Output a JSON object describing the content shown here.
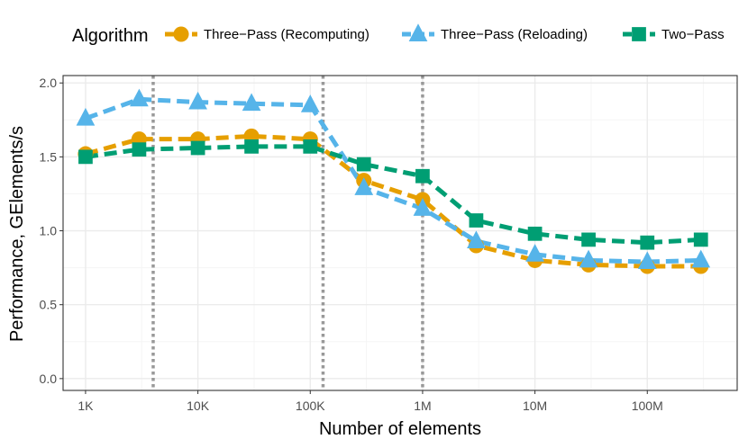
{
  "colors": {
    "three_pass_recomputing": "#E69F00",
    "three_pass_reloading": "#56B4E9",
    "two_pass": "#009E73",
    "vline": "#999999",
    "grid_major": "#ebebeb",
    "grid_minor": "#f5f5f5"
  },
  "chart_data": {
    "type": "line",
    "xlabel": "Number of elements",
    "ylabel": "Performance, GElements/s",
    "x_scale": "log10",
    "xlim": [
      631,
      631000000
    ],
    "ylim": [
      -0.08,
      2.05
    ],
    "x_ticks": [
      {
        "value": 1000,
        "label": "1K"
      },
      {
        "value": 10000,
        "label": "10K"
      },
      {
        "value": 100000,
        "label": "100K"
      },
      {
        "value": 1000000,
        "label": "1M"
      },
      {
        "value": 10000000,
        "label": "10M"
      },
      {
        "value": 100000000,
        "label": "100M"
      }
    ],
    "y_ticks": [
      {
        "value": 0.0,
        "label": "0.0"
      },
      {
        "value": 0.5,
        "label": "0.5"
      },
      {
        "value": 1.0,
        "label": "1.0"
      },
      {
        "value": 1.5,
        "label": "1.5"
      },
      {
        "value": 2.0,
        "label": "2.0"
      }
    ],
    "vertical_lines": [
      4000,
      130000,
      1000000
    ],
    "grid": true,
    "legend": {
      "title": "Algorithm",
      "position": "top"
    },
    "series": [
      {
        "name": "Three−Pass (Recomputing)",
        "key": "three_pass_recomputing",
        "marker": "circle",
        "x": [
          1000,
          3000,
          10000,
          30000,
          100000,
          300000,
          1000000,
          3000000,
          10000000,
          30000000,
          100000000,
          300000000
        ],
        "values": [
          1.52,
          1.62,
          1.62,
          1.64,
          1.62,
          1.34,
          1.21,
          0.9,
          0.8,
          0.77,
          0.76,
          0.76
        ]
      },
      {
        "name": "Three−Pass (Reloading)",
        "key": "three_pass_reloading",
        "marker": "triangle",
        "x": [
          1000,
          3000,
          10000,
          30000,
          100000,
          300000,
          1000000,
          3000000,
          10000000,
          30000000,
          100000000,
          300000000
        ],
        "values": [
          1.76,
          1.89,
          1.87,
          1.86,
          1.85,
          1.29,
          1.15,
          0.93,
          0.84,
          0.8,
          0.79,
          0.8
        ]
      },
      {
        "name": "Two−Pass",
        "key": "two_pass",
        "marker": "square",
        "x": [
          1000,
          3000,
          10000,
          30000,
          100000,
          300000,
          1000000,
          3000000,
          10000000,
          30000000,
          100000000,
          300000000
        ],
        "values": [
          1.5,
          1.55,
          1.56,
          1.57,
          1.57,
          1.45,
          1.37,
          1.07,
          0.98,
          0.94,
          0.92,
          0.94
        ]
      }
    ]
  }
}
